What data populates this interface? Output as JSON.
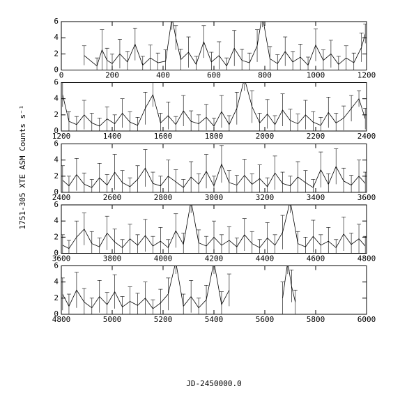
{
  "chart_data": [
    {
      "type": "line",
      "xlim": [
        0,
        1200
      ],
      "ylim": [
        0,
        6
      ],
      "xticks": [
        0,
        200,
        400,
        600,
        800,
        1000,
        1200
      ],
      "yticks": [
        0,
        2,
        4,
        6
      ],
      "x": [
        90,
        140,
        160,
        180,
        200,
        230,
        260,
        290,
        320,
        350,
        380,
        410,
        435,
        450,
        470,
        500,
        530,
        560,
        590,
        620,
        650,
        680,
        710,
        740,
        770,
        790,
        820,
        850,
        880,
        910,
        940,
        970,
        1000,
        1030,
        1060,
        1090,
        1120,
        1150,
        1180,
        1195
      ],
      "values": [
        1.8,
        0.5,
        2.5,
        1.2,
        0.8,
        2.0,
        1.0,
        3.2,
        0.6,
        1.5,
        0.9,
        1.1,
        6.5,
        4.0,
        1.3,
        2.2,
        0.7,
        3.5,
        1.0,
        1.8,
        0.5,
        2.7,
        1.2,
        0.9,
        3.0,
        6.8,
        1.4,
        0.8,
        2.3,
        1.0,
        1.6,
        0.6,
        3.1,
        1.2,
        2.0,
        0.7,
        1.5,
        0.9,
        2.8,
        4.5
      ],
      "errors": [
        1.2,
        1.0,
        2.5,
        1.5,
        1.2,
        1.8,
        1.3,
        2.0,
        1.1,
        1.6,
        1.2,
        1.4,
        1.5,
        1.5,
        1.3,
        1.9,
        1.0,
        2.0,
        1.2,
        1.7,
        1.0,
        2.2,
        1.4,
        1.2,
        2.0,
        1.5,
        1.5,
        1.1,
        1.8,
        1.3,
        1.6,
        1.0,
        2.0,
        1.3,
        1.7,
        1.0,
        1.5,
        1.2,
        1.8,
        1.2
      ]
    },
    {
      "type": "line",
      "xlim": [
        1200,
        2400
      ],
      "ylim": [
        0,
        6
      ],
      "xticks": [
        1200,
        1400,
        1600,
        1800,
        2000,
        2200,
        2400
      ],
      "yticks": [
        0,
        2,
        4,
        6
      ],
      "x": [
        1205,
        1230,
        1260,
        1290,
        1320,
        1350,
        1380,
        1410,
        1440,
        1470,
        1500,
        1530,
        1560,
        1590,
        1620,
        1650,
        1680,
        1710,
        1740,
        1770,
        1800,
        1830,
        1860,
        1890,
        1920,
        1950,
        1980,
        2010,
        2040,
        2070,
        2100,
        2130,
        2160,
        2190,
        2220,
        2250,
        2280,
        2310,
        2340,
        2370,
        2395
      ],
      "values": [
        4.5,
        1.2,
        0.8,
        2.0,
        1.0,
        0.6,
        1.5,
        0.9,
        2.2,
        1.1,
        0.7,
        2.8,
        4.5,
        1.0,
        1.9,
        0.8,
        2.5,
        1.2,
        0.9,
        1.7,
        0.6,
        2.4,
        0.8,
        2.8,
        6.5,
        3.0,
        1.0,
        2.1,
        0.8,
        2.6,
        1.3,
        0.9,
        2.0,
        1.1,
        0.7,
        2.3,
        1.0,
        1.6,
        2.8,
        4.0,
        1.5
      ],
      "errors": [
        1.5,
        1.2,
        1.0,
        1.8,
        1.2,
        1.0,
        1.5,
        1.1,
        1.8,
        1.3,
        1.0,
        2.0,
        1.5,
        1.2,
        1.7,
        1.0,
        1.9,
        1.3,
        1.1,
        1.6,
        1.0,
        2.0,
        1.1,
        2.0,
        1.5,
        2.0,
        1.2,
        1.8,
        1.1,
        2.0,
        1.4,
        1.2,
        1.8,
        1.3,
        1.0,
        1.9,
        1.2,
        1.5,
        1.6,
        1.0,
        1.3
      ]
    },
    {
      "type": "line",
      "ylabel": "1751-305 XTE ASM Counts s⁻¹",
      "xlim": [
        2400,
        3600
      ],
      "ylim": [
        0,
        6
      ],
      "xticks": [
        2400,
        2600,
        2800,
        3000,
        3200,
        3400,
        3600
      ],
      "yticks": [
        0,
        2,
        4,
        6
      ],
      "x": [
        2405,
        2430,
        2460,
        2490,
        2520,
        2550,
        2580,
        2610,
        2640,
        2670,
        2700,
        2730,
        2760,
        2790,
        2820,
        2850,
        2880,
        2910,
        2940,
        2970,
        3000,
        3030,
        3060,
        3090,
        3120,
        3150,
        3180,
        3210,
        3240,
        3270,
        3300,
        3330,
        3360,
        3390,
        3420,
        3450,
        3480,
        3510,
        3540,
        3570,
        3595
      ],
      "values": [
        1.5,
        0.8,
        2.2,
        1.0,
        0.6,
        1.8,
        0.9,
        2.5,
        1.2,
        0.7,
        1.6,
        3.0,
        1.1,
        0.8,
        2.0,
        1.3,
        0.6,
        1.9,
        1.0,
        2.6,
        0.8,
        3.5,
        1.2,
        0.9,
        2.1,
        1.0,
        1.7,
        0.7,
        2.4,
        1.1,
        0.8,
        1.9,
        1.2,
        0.6,
        2.8,
        1.0,
        3.2,
        1.4,
        0.9,
        2.0,
        1.1
      ],
      "errors": [
        1.8,
        1.2,
        2.0,
        1.4,
        1.0,
        1.8,
        1.3,
        2.2,
        1.5,
        1.1,
        1.7,
        2.3,
        1.4,
        1.2,
        2.0,
        1.5,
        1.0,
        1.9,
        1.3,
        2.1,
        1.2,
        2.3,
        1.5,
        1.2,
        2.0,
        1.3,
        1.7,
        1.1,
        2.1,
        1.4,
        1.2,
        1.9,
        1.5,
        1.0,
        2.2,
        1.3,
        2.2,
        1.6,
        1.2,
        2.0,
        1.4
      ]
    },
    {
      "type": "line",
      "xlim": [
        3600,
        4800
      ],
      "ylim": [
        0,
        6
      ],
      "xticks": [
        3600,
        3800,
        4000,
        4200,
        4400,
        4600,
        4800
      ],
      "yticks": [
        0,
        2,
        4,
        6
      ],
      "x": [
        3605,
        3630,
        3660,
        3690,
        3720,
        3750,
        3780,
        3810,
        3840,
        3870,
        3900,
        3930,
        3960,
        3990,
        4020,
        4050,
        4080,
        4110,
        4140,
        4170,
        4200,
        4230,
        4260,
        4290,
        4320,
        4350,
        4380,
        4410,
        4440,
        4470,
        4500,
        4530,
        4560,
        4590,
        4620,
        4650,
        4680,
        4710,
        4740,
        4770,
        4795
      ],
      "values": [
        1.0,
        0.6,
        2.0,
        3.0,
        1.2,
        0.8,
        2.5,
        1.4,
        0.7,
        1.8,
        1.0,
        2.2,
        0.9,
        1.5,
        0.7,
        2.8,
        1.1,
        6.5,
        1.3,
        0.9,
        2.0,
        1.0,
        1.6,
        0.8,
        2.3,
        1.2,
        0.7,
        1.9,
        1.0,
        2.6,
        6.5,
        1.2,
        0.8,
        2.1,
        1.0,
        1.5,
        0.7,
        2.4,
        1.1,
        1.8,
        0.9
      ],
      "errors": [
        1.3,
        1.0,
        2.0,
        2.0,
        1.5,
        1.1,
        2.1,
        1.6,
        1.0,
        1.8,
        1.3,
        2.0,
        1.2,
        1.7,
        1.0,
        2.1,
        1.4,
        1.5,
        1.6,
        1.2,
        2.0,
        1.3,
        1.7,
        1.1,
        2.0,
        1.5,
        1.0,
        1.9,
        1.3,
        2.1,
        1.5,
        1.5,
        1.2,
        2.0,
        1.3,
        1.7,
        1.0,
        2.1,
        1.4,
        1.8,
        1.2
      ]
    },
    {
      "type": "line",
      "xlabel": "JD-2450000.0",
      "xlim": [
        4800,
        6000
      ],
      "ylim": [
        0,
        6
      ],
      "xticks": [
        4800,
        5000,
        5200,
        5400,
        5600,
        5800,
        6000
      ],
      "yticks": [
        0,
        2,
        4,
        6
      ],
      "x": [
        4805,
        4830,
        4860,
        4890,
        4920,
        4950,
        4980,
        5010,
        5040,
        5070,
        5100,
        5130,
        5160,
        5190,
        5220,
        5250,
        5280,
        5310,
        5340,
        5370,
        5400,
        5430,
        5460,
        5550,
        5670,
        5690,
        5705,
        5720
      ],
      "values": [
        2.5,
        1.0,
        3.0,
        1.5,
        0.8,
        2.2,
        1.2,
        2.8,
        0.9,
        1.6,
        1.1,
        2.0,
        0.7,
        1.4,
        2.5,
        6.5,
        1.0,
        2.2,
        0.8,
        1.8,
        6.5,
        1.2,
        3.0,
        null,
        2.0,
        6.5,
        3.5,
        1.5
      ],
      "errors": [
        2.0,
        1.5,
        2.2,
        1.7,
        1.2,
        2.0,
        1.5,
        2.1,
        1.3,
        1.8,
        1.5,
        2.0,
        1.1,
        1.7,
        2.0,
        1.5,
        1.5,
        2.0,
        1.2,
        1.8,
        1.5,
        1.6,
        2.0,
        null,
        2.0,
        1.5,
        2.0,
        1.5
      ]
    }
  ]
}
